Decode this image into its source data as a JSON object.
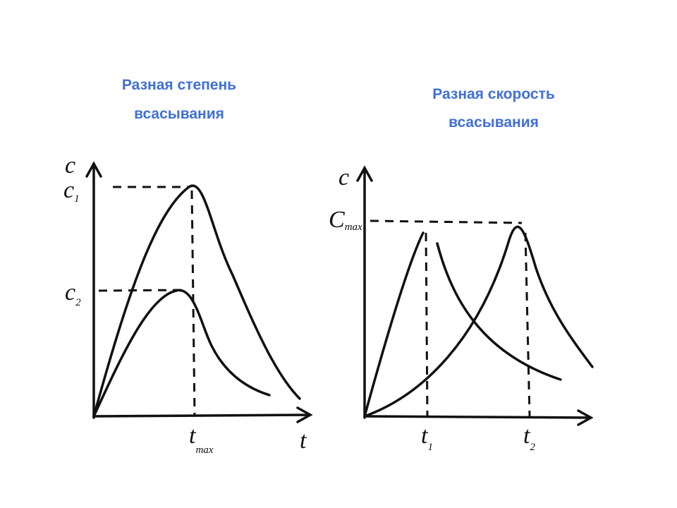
{
  "left": {
    "title": [
      "Разная степень",
      "всасывания"
    ],
    "labels": {
      "y_axis": "c",
      "c1": {
        "main": "c",
        "sub": "1"
      },
      "c2": {
        "main": "c",
        "sub": "2"
      },
      "x_axis": "t",
      "tmax": {
        "main": "t",
        "sub": "max"
      }
    }
  },
  "right": {
    "title": [
      "Разная скорость",
      "всасывания"
    ],
    "labels": {
      "y_axis": "c",
      "cmax": {
        "main": "C",
        "sub": "max"
      },
      "t1": {
        "main": "t",
        "sub": "1"
      },
      "t2": {
        "main": "t",
        "sub": "2"
      }
    }
  }
}
